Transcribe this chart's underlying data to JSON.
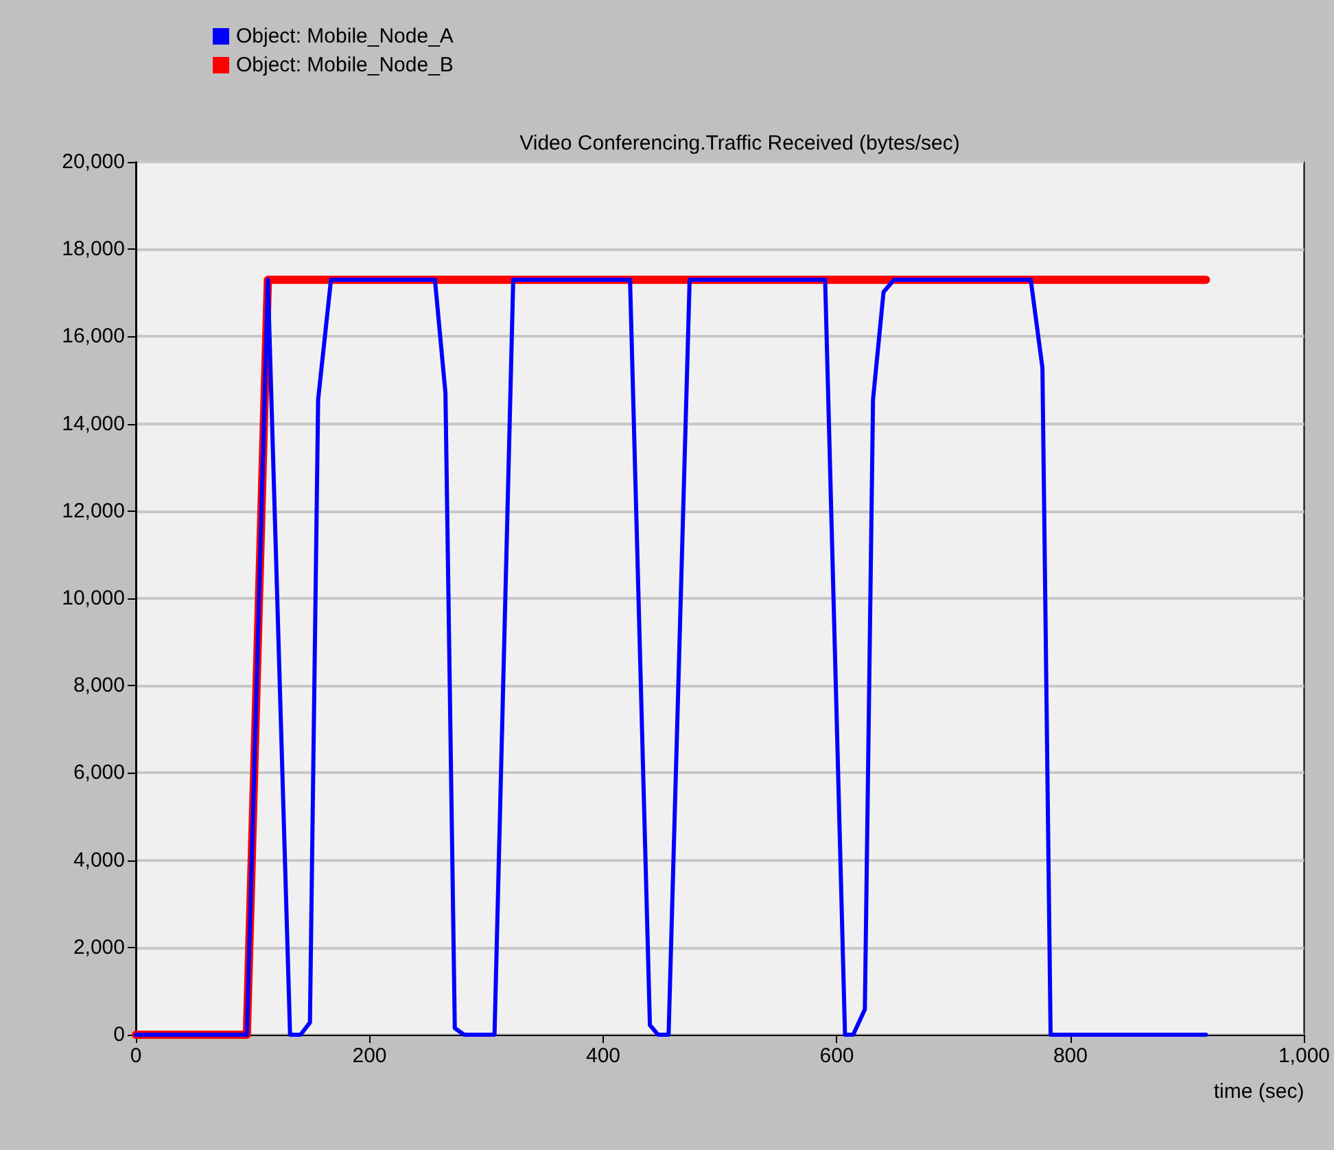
{
  "chart_data": {
    "type": "line",
    "title": "Video Conferencing.Traffic Received (bytes/sec)",
    "xlabel": "time (sec)",
    "legend": "top left",
    "grid": "y",
    "marker": "none",
    "line_style": "solid",
    "xlim": [
      0,
      1000
    ],
    "xticks": [
      0,
      200,
      400,
      600,
      800,
      {
        "value": 1000,
        "label": "1,000"
      }
    ],
    "ylim": [
      0,
      20000
    ],
    "yticks": [
      0,
      {
        "value": 2000,
        "label": "2,000"
      },
      {
        "value": 4000,
        "label": "4,000"
      },
      {
        "value": 6000,
        "label": "6,000"
      },
      {
        "value": 8000,
        "label": "8,000"
      },
      {
        "value": 10000,
        "label": "10,000"
      },
      {
        "value": 12000,
        "label": "12,000"
      },
      {
        "value": 14000,
        "label": "14,000"
      },
      {
        "value": 16000,
        "label": "16,000"
      },
      {
        "value": 18000,
        "label": "18,000"
      },
      {
        "value": 20000,
        "label": "20,000"
      }
    ],
    "series": [
      {
        "name": "Object: Mobile_Node_B",
        "color": "#ff0000",
        "x": [
          0,
          95,
          113,
          916
        ],
        "values": [
          0,
          0,
          17300,
          17300
        ]
      },
      {
        "name": "Object: Mobile_Node_A",
        "color": "#0000ff",
        "x": [
          0,
          95,
          113,
          132,
          141,
          149,
          156,
          167,
          256,
          265,
          273,
          281,
          307,
          323,
          423,
          440,
          447,
          456,
          474,
          590,
          607,
          614,
          624,
          631,
          640,
          649,
          766,
          776,
          783,
          916
        ],
        "values": [
          0,
          0,
          17300,
          0,
          0,
          280,
          14550,
          17300,
          17300,
          14700,
          150,
          0,
          0,
          17300,
          17300,
          220,
          0,
          0,
          17300,
          17300,
          0,
          0,
          580,
          14560,
          17020,
          17300,
          17300,
          15280,
          0,
          0
        ]
      }
    ]
  }
}
